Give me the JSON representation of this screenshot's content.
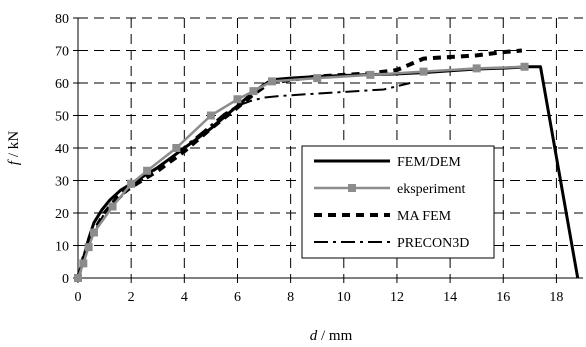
{
  "chart_data": {
    "type": "line",
    "title": "",
    "xlabel": {
      "var": "d",
      "unit": " / mm"
    },
    "ylabel": {
      "var": "f",
      "unit": " / kN"
    },
    "xlim": [
      0,
      19
    ],
    "ylim": [
      0,
      80
    ],
    "x_ticks": [
      0,
      2,
      4,
      6,
      8,
      10,
      12,
      14,
      16,
      18
    ],
    "y_ticks": [
      0,
      10,
      20,
      30,
      40,
      50,
      60,
      70,
      80
    ],
    "grid": "dashed",
    "legend_position": "right",
    "series": [
      {
        "name": "FEM/DEM",
        "style": "solid-thick",
        "color": "#000000",
        "points": [
          [
            0,
            0
          ],
          [
            0.2,
            6
          ],
          [
            0.4,
            12
          ],
          [
            0.6,
            17
          ],
          [
            0.9,
            21
          ],
          [
            1.2,
            24
          ],
          [
            1.6,
            27
          ],
          [
            2,
            29
          ],
          [
            2.5,
            31.5
          ],
          [
            3,
            34
          ],
          [
            3.5,
            37
          ],
          [
            4,
            40
          ],
          [
            4.5,
            43
          ],
          [
            5,
            46
          ],
          [
            5.5,
            49.5
          ],
          [
            6,
            53
          ],
          [
            6.5,
            56.5
          ],
          [
            7,
            59.5
          ],
          [
            7.3,
            61
          ],
          [
            8,
            61.5
          ],
          [
            9,
            62
          ],
          [
            10,
            62.3
          ],
          [
            11,
            62.6
          ],
          [
            12,
            62.8
          ],
          [
            13,
            63.2
          ],
          [
            14,
            63.8
          ],
          [
            15,
            64.3
          ],
          [
            16,
            64.6
          ],
          [
            17,
            65
          ],
          [
            17.4,
            65
          ],
          [
            18.8,
            0
          ]
        ]
      },
      {
        "name": "eksperiment",
        "style": "solid-markers",
        "color": "#8c8c8c",
        "points": [
          [
            0,
            0
          ],
          [
            0.2,
            4.5
          ],
          [
            0.4,
            9.5
          ],
          [
            0.6,
            14
          ],
          [
            1.3,
            22
          ],
          [
            2,
            29
          ],
          [
            2.6,
            33
          ],
          [
            3.7,
            40
          ],
          [
            5,
            50
          ],
          [
            6,
            55
          ],
          [
            6.6,
            57.5
          ],
          [
            7.3,
            60.5
          ],
          [
            9,
            61.5
          ],
          [
            11,
            62.5
          ],
          [
            13,
            63.5
          ],
          [
            15,
            64.5
          ],
          [
            16.8,
            65
          ]
        ]
      },
      {
        "name": "MA FEM",
        "style": "dashed-thick",
        "color": "#000000",
        "points": [
          [
            0,
            0
          ],
          [
            0.2,
            6
          ],
          [
            0.5,
            13
          ],
          [
            1,
            20
          ],
          [
            1.5,
            25
          ],
          [
            2,
            28
          ],
          [
            3,
            33
          ],
          [
            4,
            39
          ],
          [
            5,
            46
          ],
          [
            6,
            52.5
          ],
          [
            6.6,
            56.5
          ],
          [
            7.2,
            60
          ],
          [
            8,
            61
          ],
          [
            9,
            62
          ],
          [
            10,
            62.5
          ],
          [
            11,
            63
          ],
          [
            12,
            64
          ],
          [
            13,
            67.5
          ],
          [
            14,
            68
          ],
          [
            15,
            68.5
          ],
          [
            16,
            69.5
          ],
          [
            16.7,
            70
          ]
        ]
      },
      {
        "name": "PRECON3D",
        "style": "dash-dot",
        "color": "#000000",
        "points": [
          [
            0,
            0
          ],
          [
            0.3,
            8
          ],
          [
            0.6,
            14
          ],
          [
            1,
            20
          ],
          [
            1.5,
            24
          ],
          [
            2,
            28
          ],
          [
            2.6,
            31.5
          ],
          [
            3.2,
            35
          ],
          [
            3.8,
            39
          ],
          [
            4.4,
            43
          ],
          [
            5,
            47
          ],
          [
            5.5,
            50.5
          ],
          [
            6,
            53
          ],
          [
            6.5,
            54.5
          ],
          [
            7,
            55.5
          ],
          [
            7.6,
            56
          ],
          [
            8.5,
            56.5
          ],
          [
            9.5,
            57
          ],
          [
            10.5,
            57.5
          ],
          [
            11.5,
            58
          ],
          [
            12.5,
            60
          ]
        ]
      }
    ]
  }
}
